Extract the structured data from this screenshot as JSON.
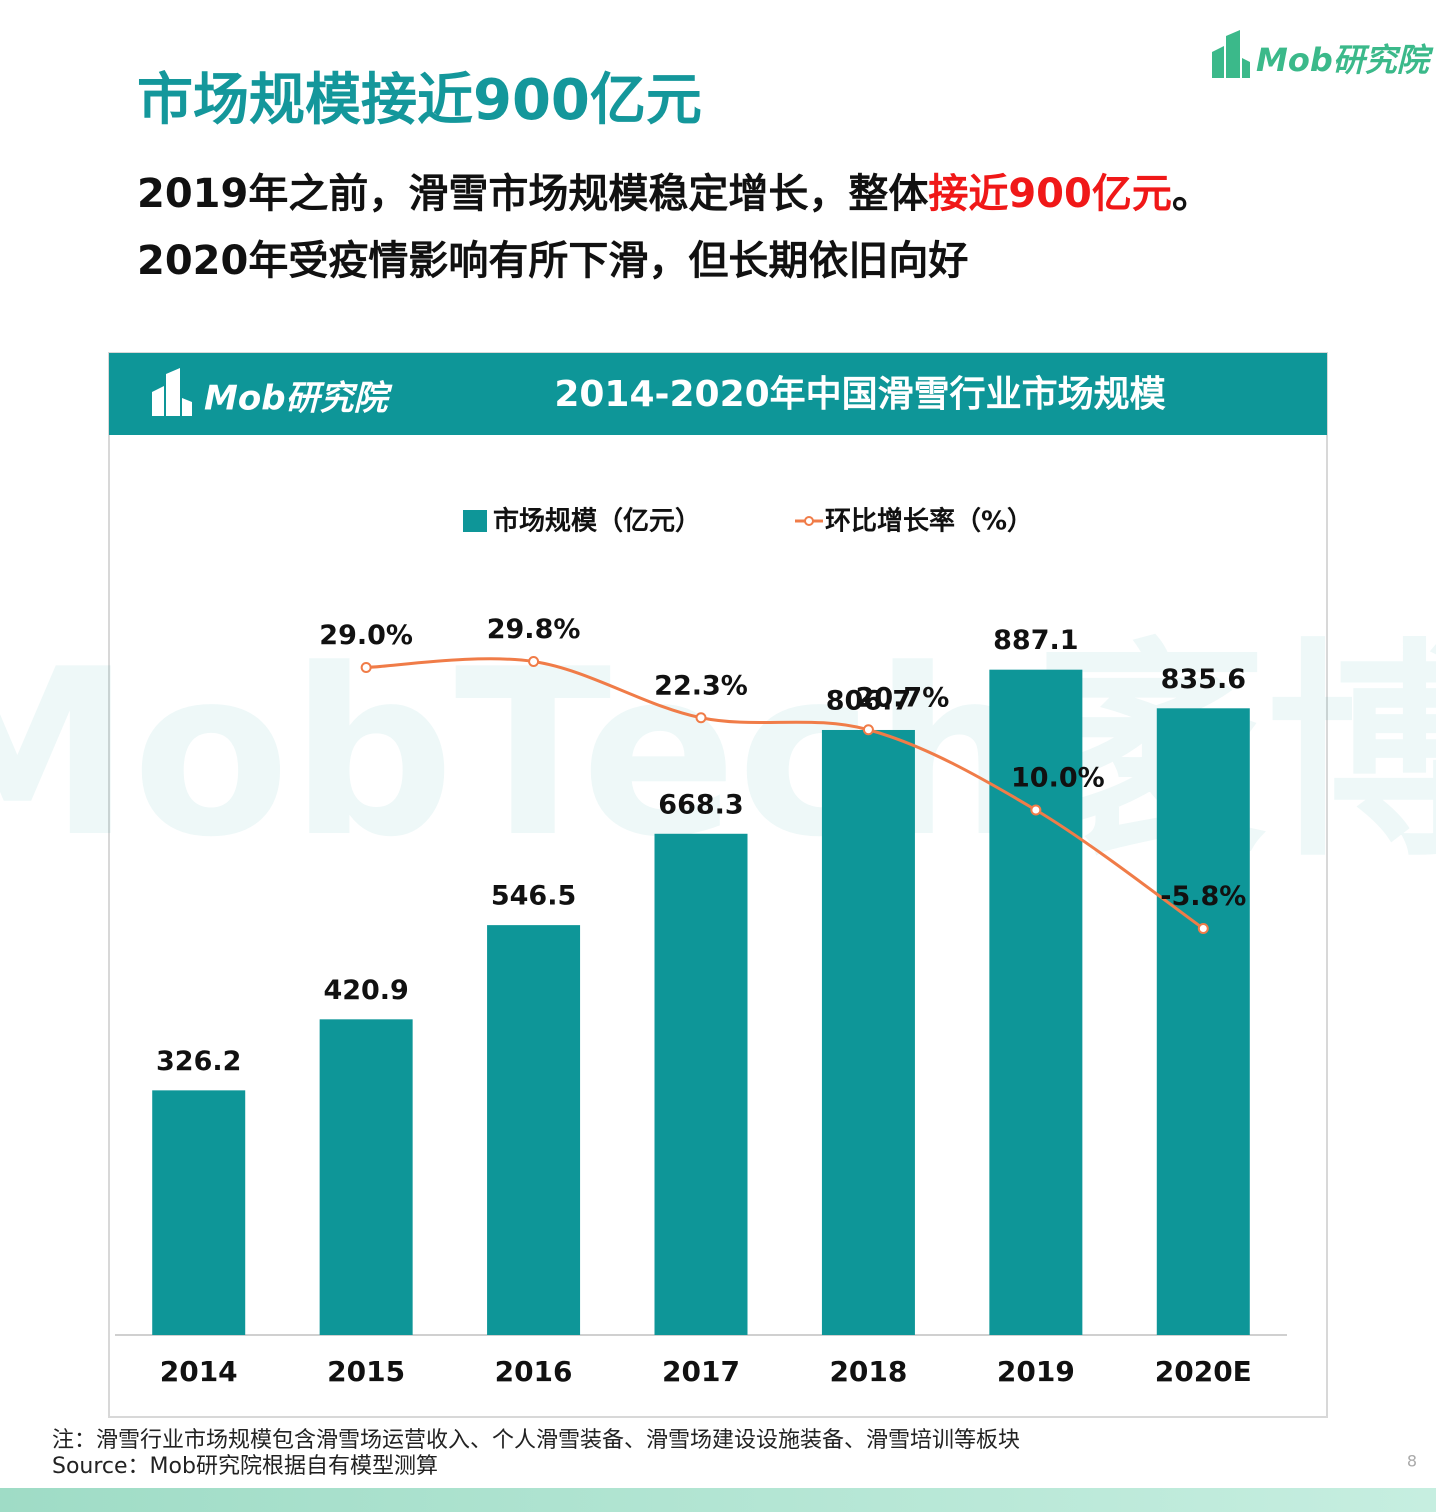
{
  "logo": "Mob研究院",
  "title": "市场规模接近900亿元",
  "subtitle": {
    "line1": [
      "2019年之前，滑雪市场规模稳定增长，整体",
      "接近900亿元",
      "。"
    ],
    "line2": "2020年受疫情影响有所下滑，但长期依旧向好"
  },
  "watermark": "MobTech袤博",
  "chart_data": {
    "type": "bar",
    "title": "2014-2020年中国滑雪行业市场规模",
    "categories": [
      "2014",
      "2015",
      "2016",
      "2017",
      "2018",
      "2019",
      "2020E"
    ],
    "series": [
      {
        "name": "市场规模（亿元）",
        "type": "bar",
        "color": "#0e9698",
        "values": [
          326.2,
          420.9,
          546.5,
          668.3,
          806.7,
          887.1,
          835.6
        ]
      },
      {
        "name": "环比增长率（%）",
        "type": "line",
        "axis": "y2",
        "color": "#f07c48",
        "values": [
          null,
          29.0,
          29.8,
          22.3,
          20.7,
          10.0,
          -5.8
        ],
        "value_labels": [
          null,
          "29.0%",
          "29.8%",
          "22.3%",
          "20.7%",
          "10.0%",
          "-5.8%"
        ]
      }
    ],
    "ylim": [
      0,
      1000
    ],
    "y2lim": [
      -60,
      40
    ],
    "legend": "top"
  },
  "note": "注：滑雪行业市场规模包含滑雪场运营收入、个人滑雪装备、滑雪场建设设施装备、滑雪培训等板块",
  "source": "Source：Mob研究院根据自有模型测算",
  "page_number": "8"
}
